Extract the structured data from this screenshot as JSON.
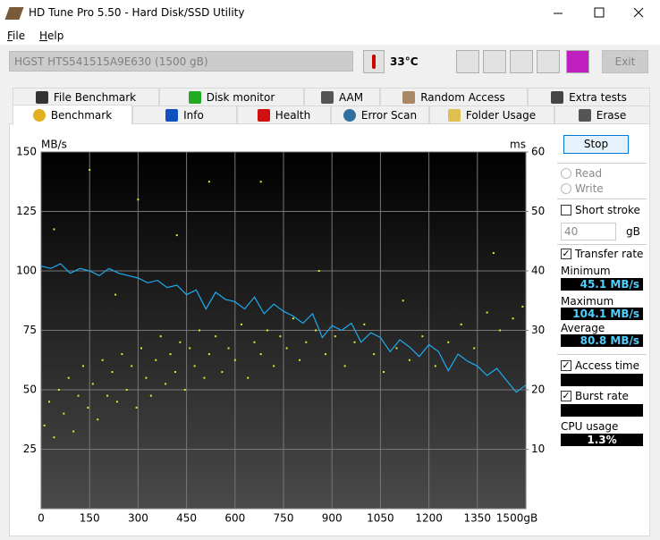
{
  "window": {
    "title": "HD Tune Pro 5.50 - Hard Disk/SSD Utility"
  },
  "menu": [
    "File",
    "Help"
  ],
  "toolbar": {
    "drive": "HGST HTS541515A9E630 (1500 gB)",
    "temperature": "33°C",
    "exit": "Exit"
  },
  "tabs": [
    "File Benchmark",
    "Disk monitor",
    "AAM",
    "Random Access",
    "Extra tests",
    "Benchmark",
    "Info",
    "Health",
    "Error Scan",
    "Folder Usage",
    "Erase"
  ],
  "panel": {
    "stop": "Stop",
    "read": "Read",
    "write": "Write",
    "short_stroke": "Short stroke",
    "stroke_size": "40",
    "stroke_unit": "gB",
    "minimum_label": "Minimum",
    "minimum": "45.1 MB/s",
    "maximum_label": "Maximum",
    "maximum": "104.1 MB/s",
    "average_label": "Average",
    "average": "80.8 MB/s",
    "burst_rate": "Burst rate",
    "cpu_usage_label": "CPU usage",
    "cpu_usage": "1.3%"
  },
  "chart_data": {
    "type": "line",
    "ylabel": "MB/s",
    "y2label": "ms",
    "xlim": [
      0,
      1500
    ],
    "xticks": [
      0,
      150,
      300,
      450,
      600,
      750,
      900,
      1050,
      1200,
      1350,
      {
        "value": 1500,
        "label": "1500gB"
      }
    ],
    "ylim": [
      0,
      150
    ],
    "yticks": [
      25,
      50,
      75,
      100,
      125,
      150
    ],
    "y2lim": [
      0,
      60
    ],
    "y2ticks": [
      10,
      20,
      30,
      40,
      50,
      60
    ],
    "grid": true,
    "series": [
      {
        "name": "Transfer rate",
        "type": "line",
        "color": "#1eaaf0",
        "x": [
          0,
          30,
          60,
          90,
          120,
          150,
          180,
          210,
          240,
          270,
          300,
          330,
          360,
          390,
          420,
          450,
          480,
          510,
          540,
          570,
          600,
          630,
          660,
          690,
          720,
          750,
          780,
          810,
          840,
          870,
          900,
          930,
          960,
          990,
          1020,
          1050,
          1080,
          1110,
          1140,
          1170,
          1200,
          1230,
          1260,
          1290,
          1320,
          1350,
          1380,
          1410,
          1440,
          1470,
          1500
        ],
        "values": [
          102,
          101,
          103,
          99,
          101,
          100,
          98,
          101,
          99,
          98,
          97,
          95,
          96,
          93,
          94,
          90,
          92,
          84,
          91,
          88,
          87,
          84,
          89,
          82,
          86,
          83,
          81,
          78,
          82,
          72,
          77,
          75,
          78,
          70,
          74,
          72,
          66,
          71,
          68,
          64,
          69,
          66,
          58,
          65,
          62,
          60,
          56,
          59,
          54,
          49,
          52
        ]
      },
      {
        "name": "Access time",
        "type": "scatter",
        "axis": "y2",
        "color": "#e6e632",
        "x": [
          10,
          25,
          40,
          55,
          70,
          85,
          100,
          115,
          130,
          145,
          160,
          175,
          190,
          205,
          220,
          235,
          250,
          265,
          280,
          295,
          310,
          325,
          340,
          355,
          370,
          385,
          400,
          415,
          430,
          445,
          460,
          475,
          490,
          505,
          520,
          540,
          560,
          580,
          600,
          620,
          640,
          660,
          680,
          700,
          720,
          740,
          760,
          780,
          800,
          820,
          850,
          880,
          910,
          940,
          970,
          1000,
          1030,
          1060,
          1100,
          1140,
          1180,
          1220,
          1260,
          1300,
          1340,
          1380,
          1420,
          1460,
          1490,
          40,
          150,
          300,
          420,
          230,
          520,
          680,
          860,
          1120,
          1400
        ],
        "values": [
          14,
          18,
          12,
          20,
          16,
          22,
          13,
          19,
          24,
          17,
          21,
          15,
          25,
          19,
          23,
          18,
          26,
          20,
          24,
          17,
          27,
          22,
          19,
          25,
          29,
          21,
          26,
          23,
          28,
          20,
          27,
          24,
          30,
          22,
          26,
          29,
          23,
          27,
          25,
          31,
          22,
          28,
          26,
          30,
          24,
          29,
          27,
          32,
          25,
          28,
          30,
          26,
          29,
          24,
          28,
          31,
          26,
          23,
          27,
          25,
          29,
          24,
          28,
          31,
          27,
          33,
          30,
          32,
          34,
          47,
          57,
          52,
          46,
          36,
          55,
          55,
          40,
          35,
          43
        ]
      }
    ]
  }
}
